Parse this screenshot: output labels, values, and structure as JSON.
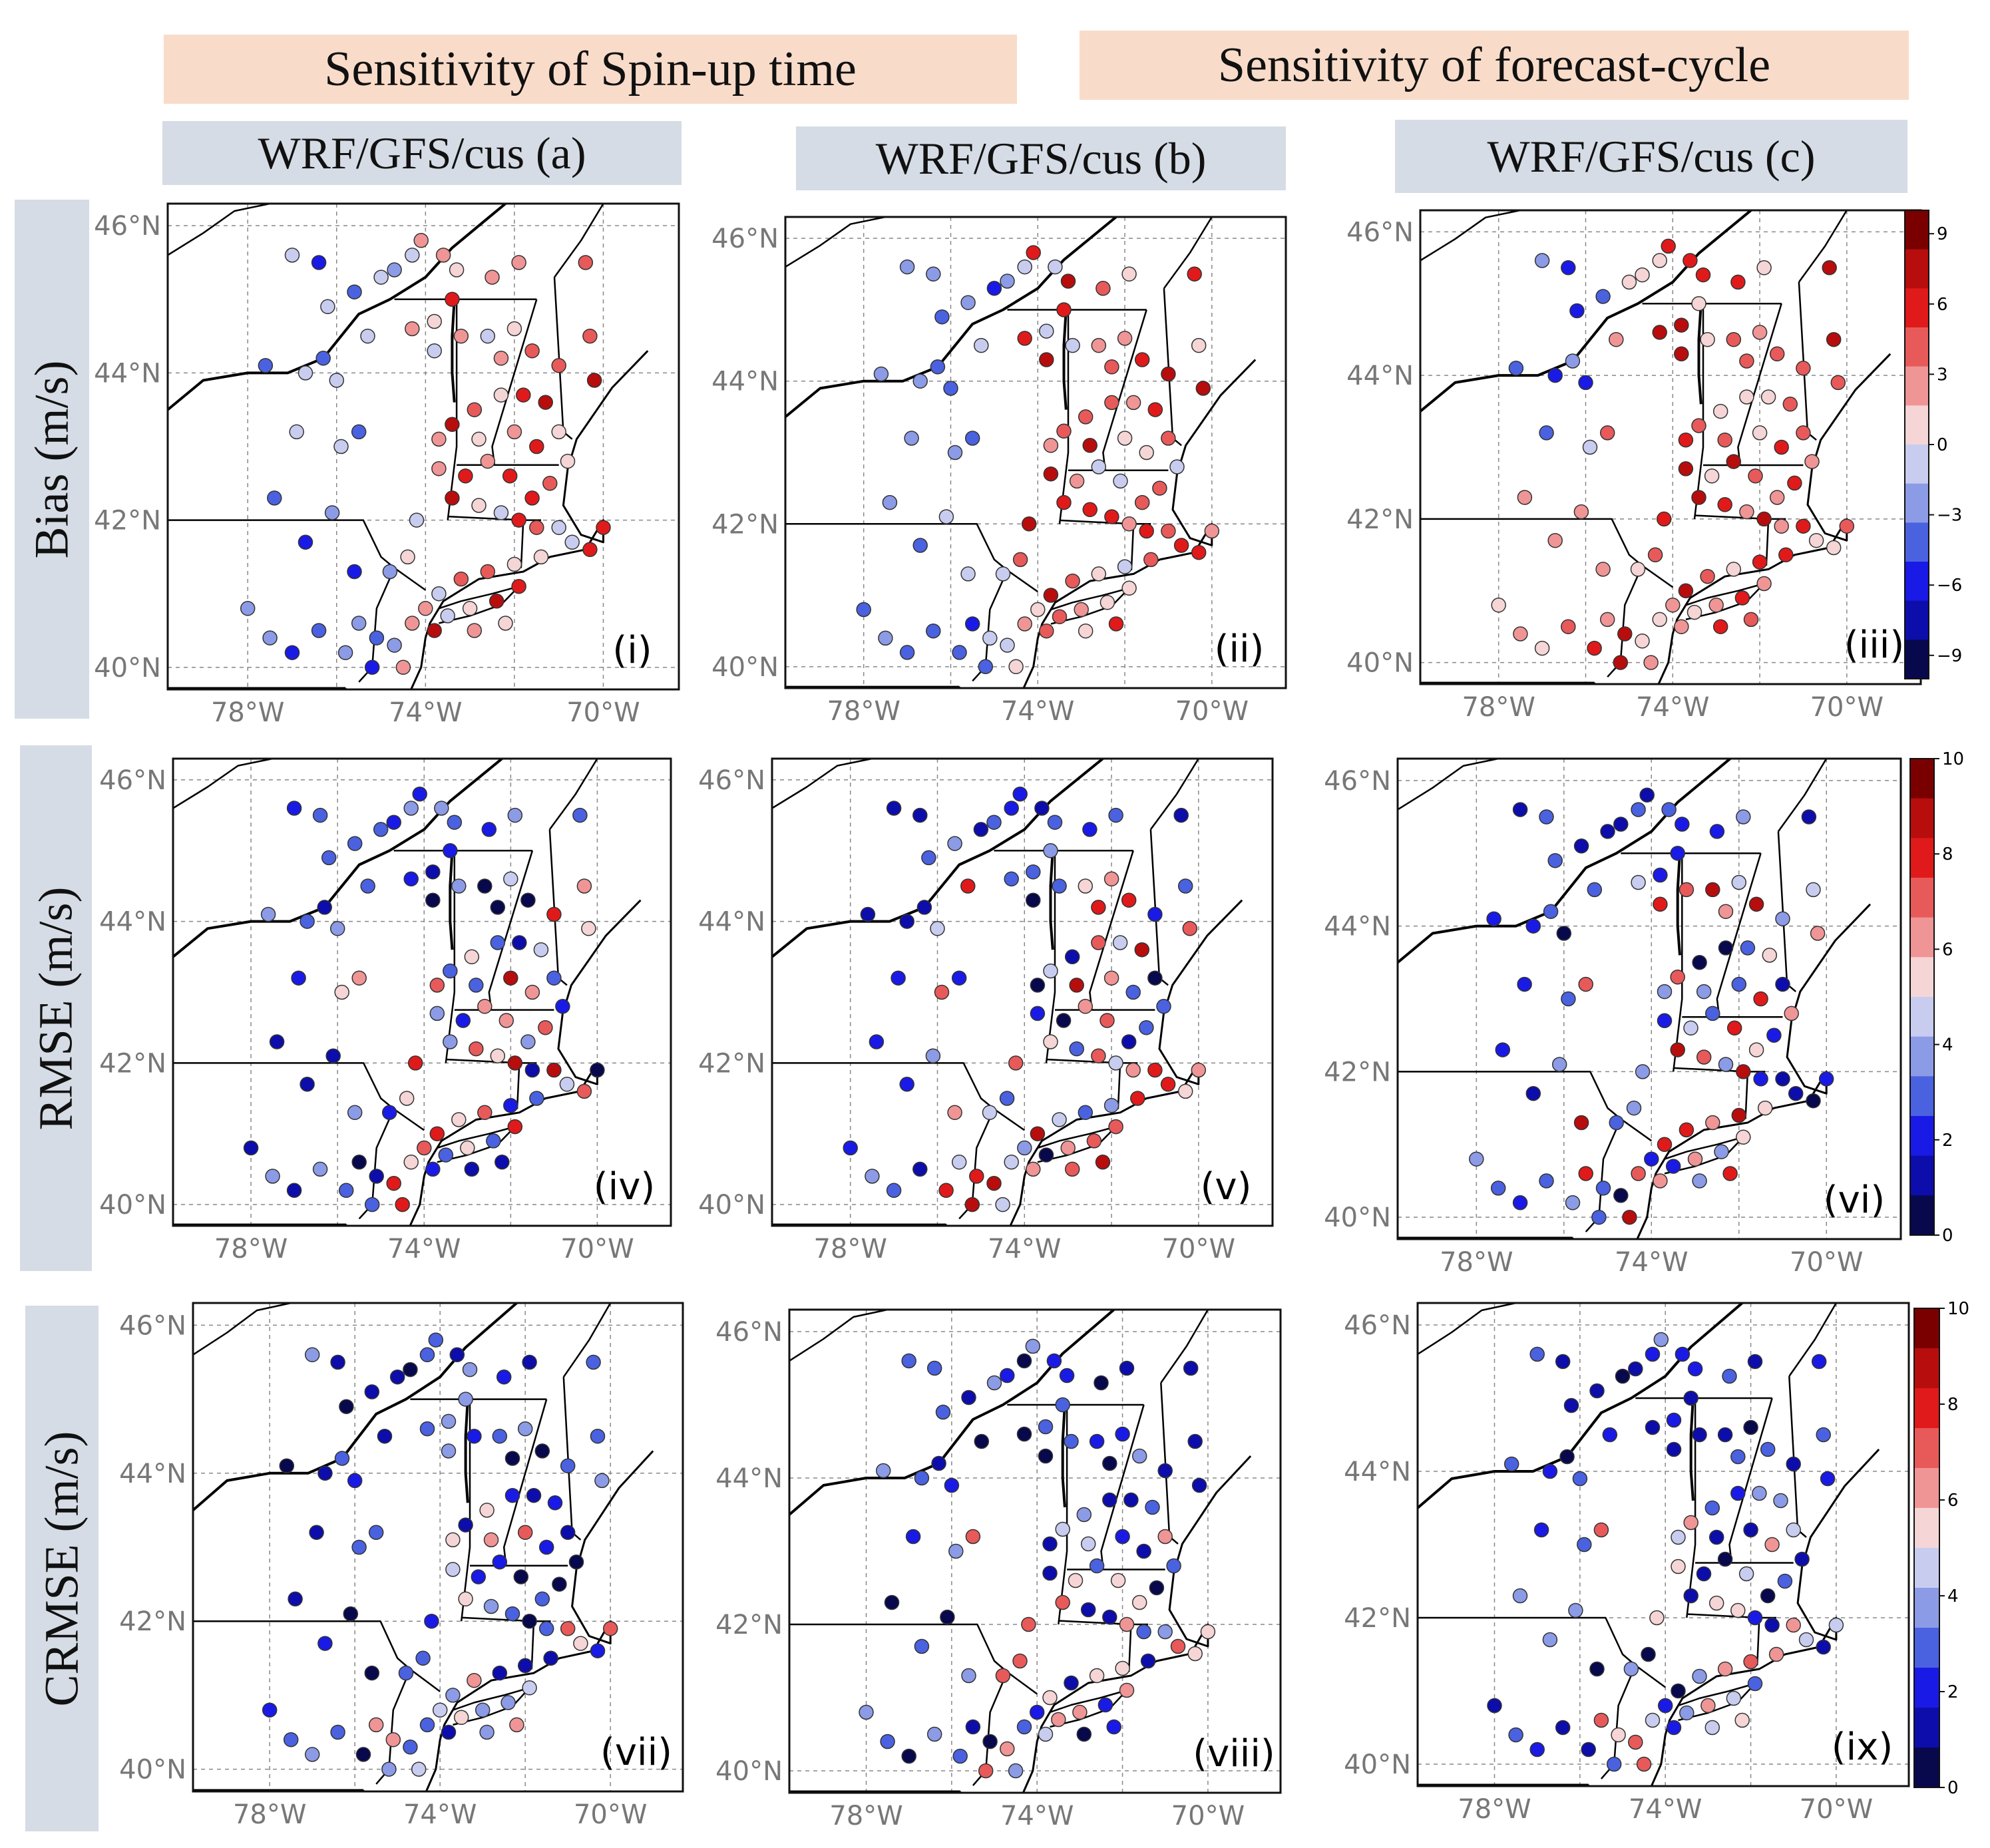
{
  "headers": {
    "spinup": "Sensitivity of Spin-up time",
    "forecast": "Sensitivity of forecast-cycle"
  },
  "columns": [
    "WRF/GFS/cus (a)",
    "WRF/GFS/cus (b)",
    "WRF/GFS/cus (c)"
  ],
  "rows": [
    "Bias (m/s)",
    "RMSE (m/s)",
    "CRMSE (m/s)"
  ],
  "axes": {
    "lat_labels": [
      "46°N",
      "44°N",
      "42°N",
      "40°N"
    ],
    "lon_labels": [
      "78°W",
      "74°W",
      "70°W"
    ],
    "lat_values": [
      46,
      44,
      42,
      40
    ],
    "lon_values": [
      -78,
      -74,
      -70
    ],
    "lat_range": [
      39.7,
      46.3
    ],
    "lon_range": [
      -79.8,
      -68.3
    ]
  },
  "panels": [
    {
      "label": "(i)",
      "metric": "bias",
      "style": "warm"
    },
    {
      "label": "(ii)",
      "metric": "bias",
      "style": "warm"
    },
    {
      "label": "(iii)",
      "metric": "bias",
      "style": "hot"
    },
    {
      "label": "(iv)",
      "metric": "rmse",
      "style": "mixed"
    },
    {
      "label": "(v)",
      "metric": "rmse",
      "style": "mixed"
    },
    {
      "label": "(vi)",
      "metric": "rmse",
      "style": "mixed"
    },
    {
      "label": "(vii)",
      "metric": "crmse",
      "style": "cool"
    },
    {
      "label": "(viii)",
      "metric": "crmse",
      "style": "cool"
    },
    {
      "label": "(ix)",
      "metric": "crmse",
      "style": "cool"
    }
  ],
  "colorbars": [
    {
      "ticks": [
        "9",
        "6",
        "3",
        "0",
        "−3",
        "−6",
        "−9"
      ],
      "tick_values": [
        9,
        6,
        3,
        0,
        -3,
        -6,
        -9
      ],
      "range": [
        -10,
        10
      ]
    },
    {
      "ticks": [
        "10",
        "8",
        "6",
        "4",
        "2",
        "0"
      ],
      "tick_values": [
        10,
        8,
        6,
        4,
        2,
        0
      ],
      "range": [
        0,
        10
      ]
    },
    {
      "ticks": [
        "10",
        "8",
        "6",
        "4",
        "2",
        "0"
      ],
      "tick_values": [
        10,
        8,
        6,
        4,
        2,
        0
      ],
      "range": [
        0,
        10
      ]
    }
  ],
  "colors": {
    "palette": [
      "#08084d",
      "#0d0dab",
      "#1a1ae6",
      "#4a62e0",
      "#8c9be6",
      "#c8cdf0",
      "#f5d5d5",
      "#f09595",
      "#e85a5a",
      "#e01a1a",
      "#b80d0d",
      "#7a0000"
    ]
  },
  "stations": [
    [
      -77.0,
      45.6
    ],
    [
      -76.4,
      45.5
    ],
    [
      -76.2,
      44.9
    ],
    [
      -75.6,
      45.1
    ],
    [
      -75.0,
      45.3
    ],
    [
      -74.7,
      45.4
    ],
    [
      -74.3,
      45.6
    ],
    [
      -74.1,
      45.8
    ],
    [
      -73.6,
      45.6
    ],
    [
      -73.3,
      45.4
    ],
    [
      -72.5,
      45.3
    ],
    [
      -71.9,
      45.5
    ],
    [
      -70.4,
      45.5
    ],
    [
      -73.4,
      45.0
    ],
    [
      -73.8,
      44.7
    ],
    [
      -74.3,
      44.6
    ],
    [
      -75.3,
      44.5
    ],
    [
      -76.3,
      44.2
    ],
    [
      -76.7,
      44.0
    ],
    [
      -77.6,
      44.1
    ],
    [
      -76.0,
      43.9
    ],
    [
      -75.5,
      43.2
    ],
    [
      -76.9,
      43.2
    ],
    [
      -75.9,
      43.0
    ],
    [
      -73.8,
      44.3
    ],
    [
      -73.2,
      44.5
    ],
    [
      -72.6,
      44.5
    ],
    [
      -72.0,
      44.6
    ],
    [
      -72.3,
      44.2
    ],
    [
      -71.6,
      44.3
    ],
    [
      -71.0,
      44.1
    ],
    [
      -70.3,
      44.5
    ],
    [
      -70.2,
      43.9
    ],
    [
      -71.3,
      43.6
    ],
    [
      -71.8,
      43.7
    ],
    [
      -72.3,
      43.7
    ],
    [
      -72.9,
      43.5
    ],
    [
      -73.4,
      43.3
    ],
    [
      -73.7,
      43.1
    ],
    [
      -72.8,
      43.1
    ],
    [
      -72.0,
      43.2
    ],
    [
      -71.5,
      43.0
    ],
    [
      -71.0,
      43.2
    ],
    [
      -70.8,
      42.8
    ],
    [
      -71.2,
      42.5
    ],
    [
      -71.6,
      42.3
    ],
    [
      -72.1,
      42.6
    ],
    [
      -72.6,
      42.8
    ],
    [
      -73.1,
      42.6
    ],
    [
      -73.4,
      42.3
    ],
    [
      -72.8,
      42.2
    ],
    [
      -72.3,
      42.1
    ],
    [
      -71.5,
      41.9
    ],
    [
      -71.0,
      41.9
    ],
    [
      -70.7,
      41.7
    ],
    [
      -70.3,
      41.6
    ],
    [
      -70.0,
      41.9
    ],
    [
      -71.4,
      41.5
    ],
    [
      -72.0,
      41.4
    ],
    [
      -72.6,
      41.3
    ],
    [
      -73.2,
      41.2
    ],
    [
      -73.7,
      41.0
    ],
    [
      -74.0,
      40.8
    ],
    [
      -73.5,
      40.7
    ],
    [
      -73.0,
      40.8
    ],
    [
      -72.4,
      40.9
    ],
    [
      -71.9,
      41.1
    ],
    [
      -74.4,
      41.5
    ],
    [
      -74.8,
      41.3
    ],
    [
      -75.6,
      41.3
    ],
    [
      -76.7,
      41.7
    ],
    [
      -77.4,
      42.3
    ],
    [
      -76.1,
      42.1
    ],
    [
      -75.5,
      40.6
    ],
    [
      -75.1,
      40.4
    ],
    [
      -74.7,
      40.3
    ],
    [
      -74.5,
      40.0
    ],
    [
      -75.2,
      40.0
    ],
    [
      -75.8,
      40.2
    ],
    [
      -76.4,
      40.5
    ],
    [
      -77.0,
      40.2
    ],
    [
      -77.5,
      40.4
    ],
    [
      -78.0,
      40.8
    ],
    [
      -74.3,
      40.6
    ],
    [
      -73.8,
      40.5
    ],
    [
      -72.9,
      40.5
    ],
    [
      -72.2,
      40.6
    ],
    [
      -74.2,
      42.0
    ],
    [
      -73.7,
      42.7
    ],
    [
      -71.9,
      42.0
    ]
  ]
}
